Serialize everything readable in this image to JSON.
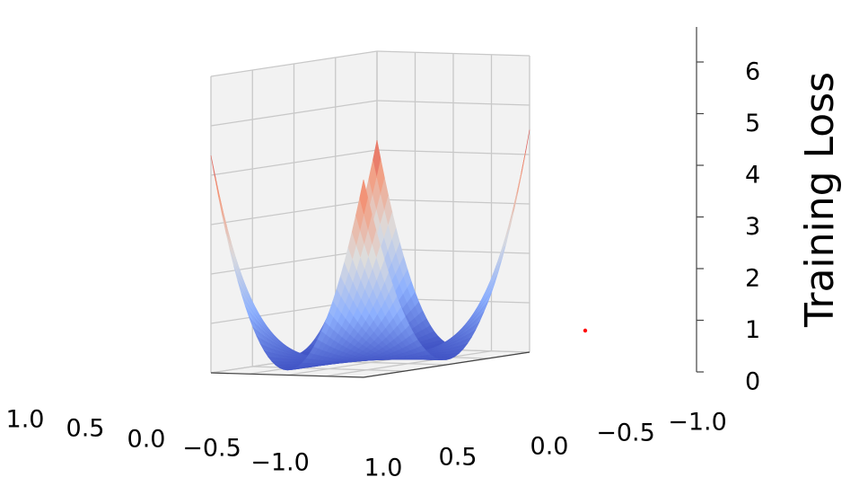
{
  "chart_data": {
    "type": "surface",
    "zlabel": "Training Loss",
    "xlabel": "",
    "ylabel": "",
    "z_ticks": [
      "0",
      "1",
      "2",
      "3",
      "4",
      "5",
      "6"
    ],
    "x_ticks": [
      "1.0",
      "0.5",
      "0.0",
      "−0.5",
      "−1.0"
    ],
    "y_ticks": [
      "1.0",
      "0.5",
      "0.0",
      "−0.5",
      "−1.0"
    ],
    "x_range": [
      -1,
      1
    ],
    "y_range": [
      -1,
      1
    ],
    "zlim": [
      0,
      6
    ],
    "corner_values": [
      {
        "x": 1,
        "y": 1,
        "z": 4.0
      },
      {
        "x": 1,
        "y": -1,
        "z": 4.5
      },
      {
        "x": -1,
        "y": 1,
        "z": 4.4
      },
      {
        "x": -1,
        "y": -1,
        "z": 4.2
      }
    ],
    "minimum_value": 0.1,
    "marker": {
      "x": 0,
      "y": 0,
      "z": 0.1,
      "color": "#ff0000"
    },
    "colormap": "coolwarm",
    "grid": true,
    "pane_color": "#f2f2f2",
    "grid_color": "#c8c8c8"
  }
}
